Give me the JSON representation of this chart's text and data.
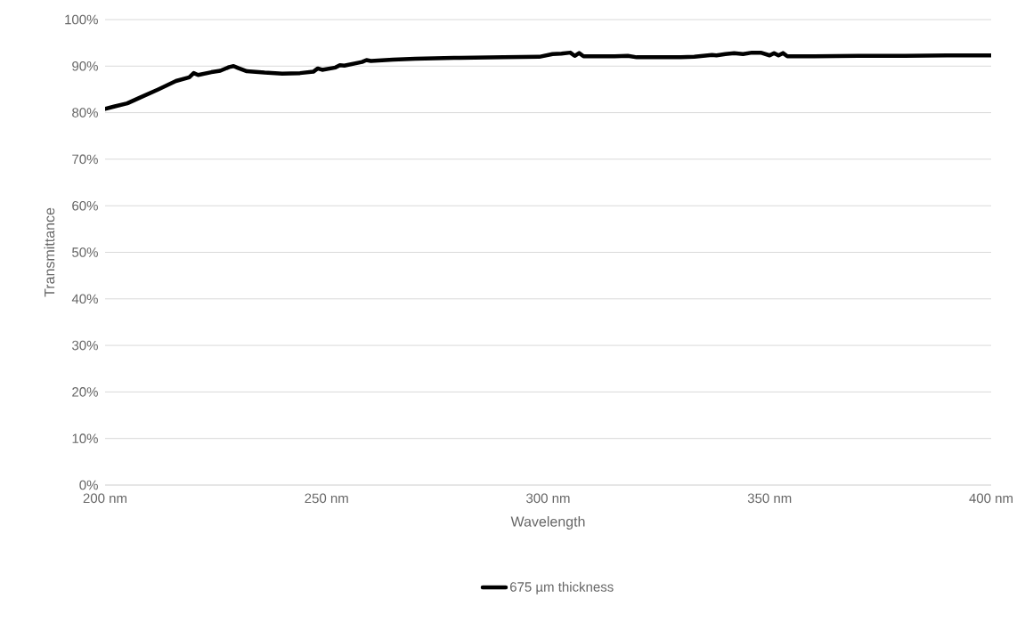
{
  "chart_data": {
    "type": "line",
    "xlabel": "Wavelength",
    "ylabel": "Transmittance",
    "x": [
      200,
      202,
      205,
      208,
      212,
      216,
      219,
      220,
      221,
      224,
      226,
      228,
      229,
      230,
      232,
      236,
      240,
      244,
      247,
      248,
      249,
      252,
      253,
      254,
      258,
      259,
      260,
      265,
      270,
      280,
      290,
      298,
      301,
      303,
      305,
      306,
      307,
      308,
      315,
      318,
      320,
      330,
      333,
      335,
      337,
      338,
      340,
      342,
      344,
      346,
      348,
      350,
      351,
      352,
      353,
      354,
      360,
      370,
      380,
      390,
      400
    ],
    "series": [
      {
        "name": "675 µm thickness",
        "color": "#000000",
        "values": [
          80.8,
          81.3,
          82,
          83.3,
          85,
          86.8,
          87.6,
          88.5,
          88.1,
          88.7,
          89,
          89.8,
          90,
          89.6,
          88.9,
          88.6,
          88.4,
          88.5,
          88.8,
          89.5,
          89.2,
          89.7,
          90.2,
          90.1,
          90.9,
          91.3,
          91.1,
          91.4,
          91.6,
          91.8,
          91.9,
          92,
          92.6,
          92.7,
          92.9,
          92.2,
          92.8,
          92.1,
          92.1,
          92.2,
          91.9,
          91.9,
          92,
          92.2,
          92.4,
          92.3,
          92.6,
          92.8,
          92.6,
          92.9,
          92.9,
          92.3,
          92.8,
          92.3,
          92.8,
          92.1,
          92.1,
          92.2,
          92.2,
          92.3,
          92.3
        ]
      }
    ],
    "xlim": [
      200,
      400
    ],
    "xticks": [
      {
        "value": 200,
        "label": "200 nm"
      },
      {
        "value": 250,
        "label": "250 nm"
      },
      {
        "value": 300,
        "label": "300 nm"
      },
      {
        "value": 350,
        "label": "350 nm"
      },
      {
        "value": 400,
        "label": "400 nm"
      }
    ],
    "ylim": [
      0,
      100
    ],
    "yticks": [
      {
        "value": 0,
        "label": "0%"
      },
      {
        "value": 10,
        "label": "10%"
      },
      {
        "value": 20,
        "label": "20%"
      },
      {
        "value": 30,
        "label": "30%"
      },
      {
        "value": 40,
        "label": "40%"
      },
      {
        "value": 50,
        "label": "50%"
      },
      {
        "value": 60,
        "label": "60%"
      },
      {
        "value": 70,
        "label": "70%"
      },
      {
        "value": 80,
        "label": "80%"
      },
      {
        "value": 90,
        "label": "90%"
      },
      {
        "value": 100,
        "label": "100%"
      }
    ],
    "grid": "y",
    "legend": "bottom",
    "marker": "none",
    "line_style": "solid"
  }
}
